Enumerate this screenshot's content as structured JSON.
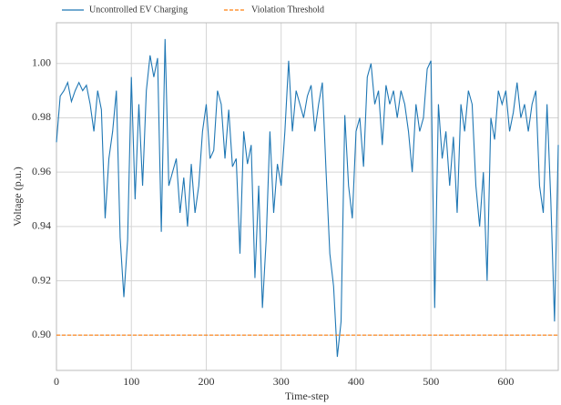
{
  "chart_data": {
    "type": "line",
    "xlabel": "Time-step",
    "ylabel": "Voltage (p.u.)",
    "xlim": [
      0,
      670
    ],
    "ylim": [
      0.887,
      1.015
    ],
    "xticks": [
      0,
      100,
      200,
      300,
      400,
      500,
      600
    ],
    "yticks": [
      {
        "value": 0.9,
        "label": "0.90"
      },
      0.92,
      0.94,
      0.96,
      0.98,
      {
        "value": 1.0,
        "label": "1.00"
      }
    ],
    "grid": true,
    "legend": "top-left",
    "series": [
      {
        "name": "Uncontrolled EV Charging",
        "color": "#1f77b4",
        "style": "solid",
        "x": [
          0,
          5,
          10,
          15,
          20,
          25,
          30,
          35,
          40,
          45,
          50,
          55,
          60,
          65,
          70,
          75,
          80,
          85,
          90,
          95,
          100,
          105,
          110,
          115,
          120,
          125,
          130,
          135,
          140,
          145,
          150,
          155,
          160,
          165,
          170,
          175,
          180,
          185,
          190,
          195,
          200,
          205,
          210,
          215,
          220,
          225,
          230,
          235,
          240,
          245,
          250,
          255,
          260,
          265,
          270,
          275,
          280,
          285,
          290,
          295,
          300,
          305,
          310,
          315,
          320,
          325,
          330,
          335,
          340,
          345,
          350,
          355,
          360,
          365,
          370,
          375,
          380,
          385,
          390,
          395,
          400,
          405,
          410,
          415,
          420,
          425,
          430,
          435,
          440,
          445,
          450,
          455,
          460,
          465,
          470,
          475,
          480,
          485,
          490,
          495,
          500,
          505,
          510,
          515,
          520,
          525,
          530,
          535,
          540,
          545,
          550,
          555,
          560,
          565,
          570,
          575,
          580,
          585,
          590,
          595,
          600,
          605,
          610,
          615,
          620,
          625,
          630,
          635,
          640,
          645,
          650,
          655,
          660,
          665,
          670
        ],
        "values": [
          0.971,
          0.988,
          0.99,
          0.993,
          0.986,
          0.99,
          0.993,
          0.99,
          0.992,
          0.985,
          0.975,
          0.99,
          0.983,
          0.943,
          0.965,
          0.975,
          0.99,
          0.936,
          0.914,
          0.935,
          0.995,
          0.95,
          0.985,
          0.955,
          0.99,
          1.003,
          0.995,
          1.002,
          0.938,
          1.009,
          0.955,
          0.96,
          0.965,
          0.945,
          0.958,
          0.94,
          0.963,
          0.945,
          0.955,
          0.975,
          0.985,
          0.965,
          0.968,
          0.99,
          0.985,
          0.965,
          0.983,
          0.962,
          0.965,
          0.93,
          0.975,
          0.963,
          0.97,
          0.921,
          0.955,
          0.91,
          0.935,
          0.975,
          0.945,
          0.963,
          0.955,
          0.975,
          1.001,
          0.975,
          0.99,
          0.985,
          0.98,
          0.988,
          0.992,
          0.975,
          0.985,
          0.993,
          0.96,
          0.93,
          0.918,
          0.892,
          0.905,
          0.981,
          0.955,
          0.943,
          0.975,
          0.98,
          0.962,
          0.995,
          1.0,
          0.985,
          0.99,
          0.97,
          0.992,
          0.985,
          0.99,
          0.98,
          0.99,
          0.985,
          0.975,
          0.96,
          0.985,
          0.975,
          0.98,
          0.998,
          1.001,
          0.91,
          0.985,
          0.965,
          0.975,
          0.955,
          0.973,
          0.945,
          0.985,
          0.975,
          0.99,
          0.985,
          0.955,
          0.94,
          0.96,
          0.92,
          0.98,
          0.972,
          0.99,
          0.985,
          0.99,
          0.975,
          0.982,
          0.993,
          0.98,
          0.985,
          0.975,
          0.985,
          0.99,
          0.955,
          0.945,
          0.985,
          0.95,
          0.905,
          0.97
        ]
      },
      {
        "name": "Violation Threshold",
        "color": "#ff7f0e",
        "style": "dashed",
        "x": [
          0,
          670
        ],
        "values": [
          0.9,
          0.9
        ]
      }
    ]
  }
}
